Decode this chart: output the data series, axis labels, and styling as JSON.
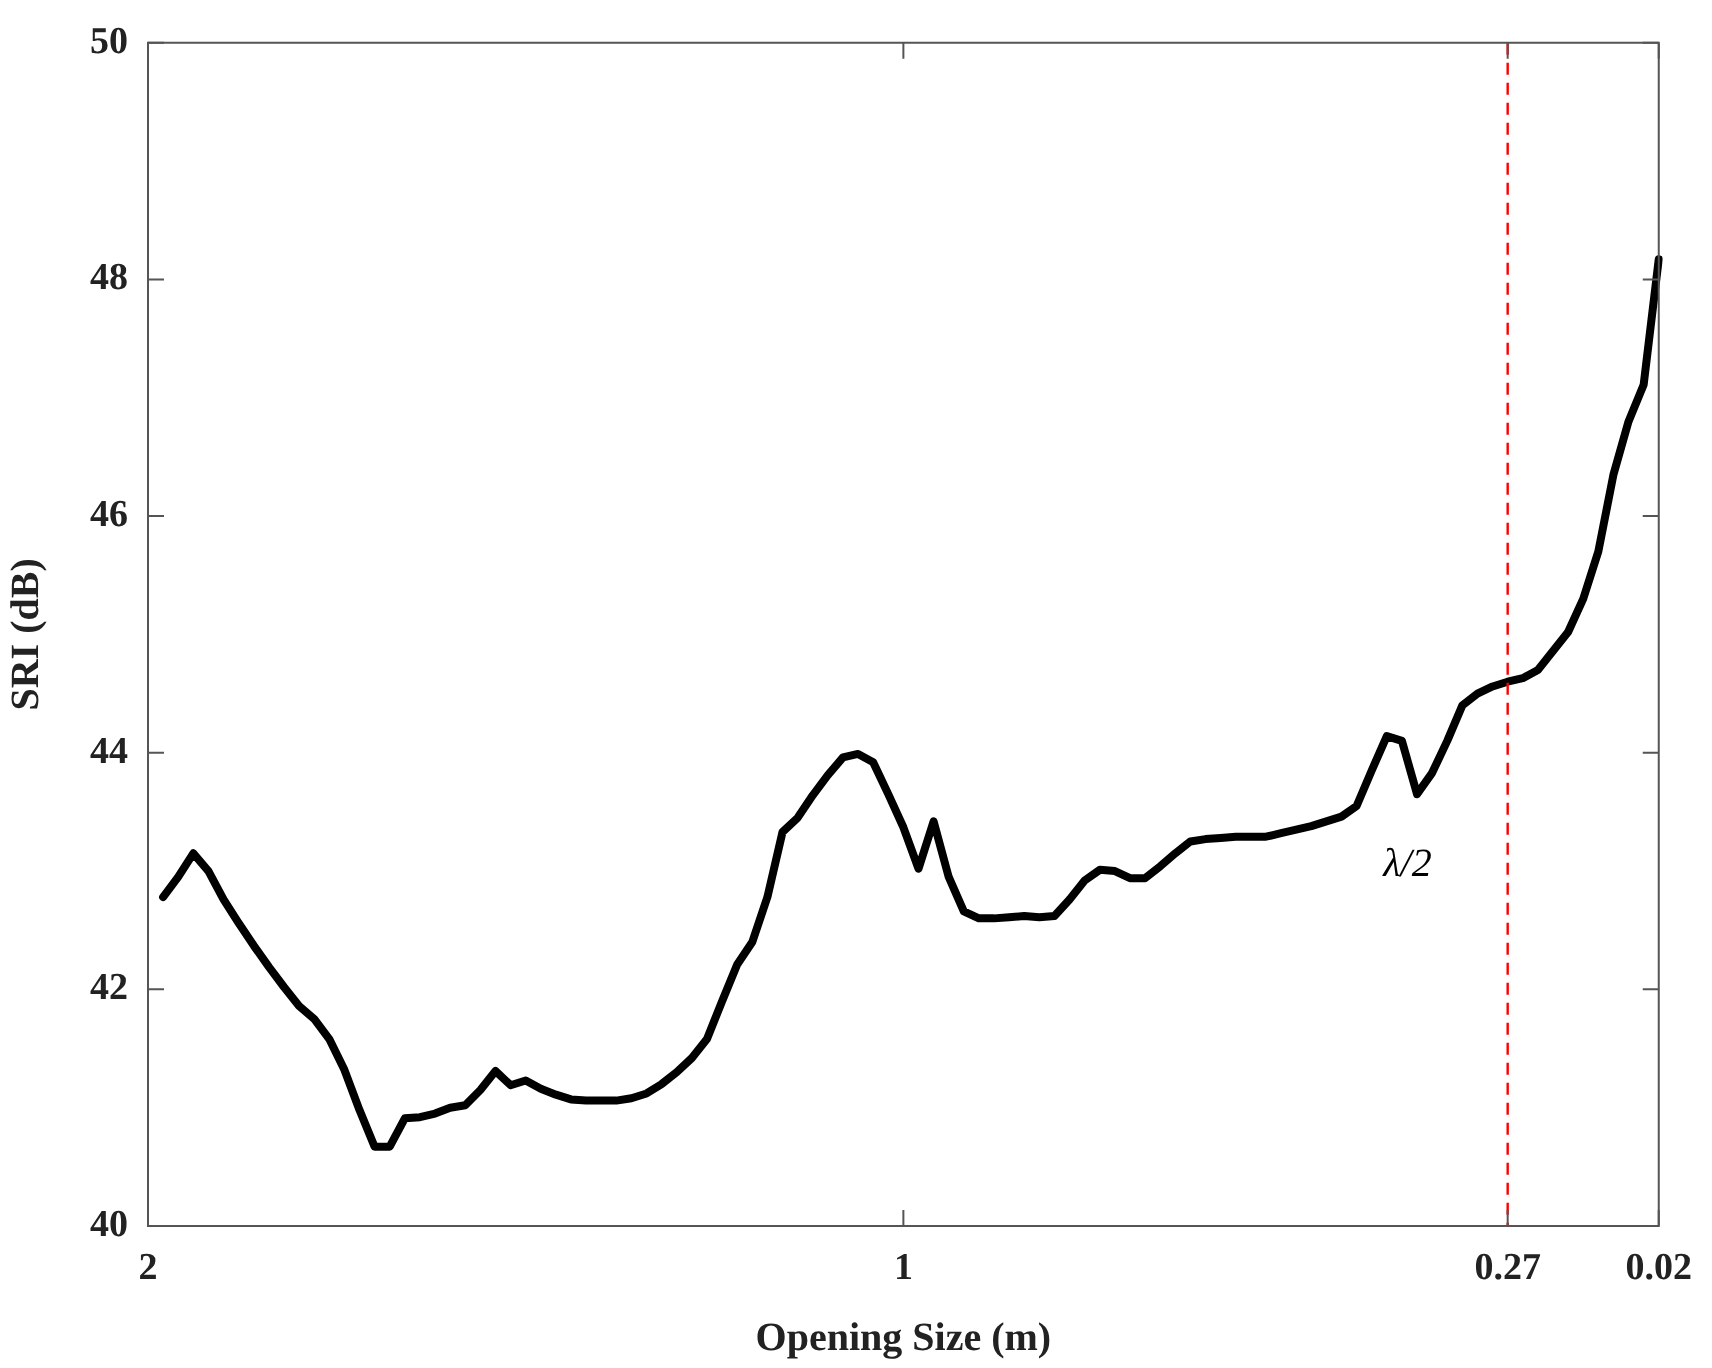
{
  "chart_data": {
    "type": "line",
    "xlabel": "Opening Size (m)",
    "ylabel": "SRI (dB)",
    "categories": [
      "2",
      null,
      null,
      null,
      null,
      null,
      null,
      null,
      null,
      null,
      null,
      null,
      null,
      null,
      null,
      null,
      null,
      null,
      null,
      null,
      null,
      null,
      null,
      null,
      null,
      null,
      null,
      null,
      null,
      null,
      null,
      null,
      null,
      null,
      null,
      null,
      null,
      null,
      null,
      null,
      null,
      null,
      null,
      null,
      null,
      null,
      null,
      null,
      null,
      null,
      "1",
      null,
      null,
      null,
      null,
      null,
      null,
      null,
      null,
      null,
      null,
      null,
      null,
      null,
      null,
      null,
      null,
      null,
      null,
      null,
      null,
      null,
      null,
      null,
      null,
      null,
      null,
      null,
      null,
      null,
      null,
      null,
      null,
      null,
      null,
      null,
      null,
      null,
      null,
      null,
      "0.27",
      null,
      null,
      null,
      null,
      null,
      null,
      null,
      null,
      null,
      "0.02"
    ],
    "series": [
      {
        "color": "#000000",
        "values": [
          null,
          42.78,
          42.95,
          43.15,
          43.0,
          42.76,
          42.56,
          42.37,
          42.19,
          42.02,
          41.86,
          41.75,
          41.58,
          41.32,
          40.98,
          40.67,
          40.67,
          40.91,
          40.92,
          40.95,
          41.0,
          41.02,
          41.15,
          41.31,
          41.19,
          41.23,
          41.16,
          41.11,
          41.07,
          41.06,
          41.06,
          41.06,
          41.08,
          41.12,
          41.2,
          41.3,
          41.42,
          41.58,
          41.9,
          42.21,
          42.4,
          42.78,
          43.33,
          43.45,
          43.64,
          43.81,
          43.96,
          43.99,
          43.92,
          43.65,
          43.37,
          43.02,
          43.42,
          42.95,
          42.66,
          42.6,
          42.6,
          42.61,
          42.62,
          42.61,
          42.62,
          42.76,
          42.92,
          43.01,
          43.0,
          42.94,
          42.94,
          43.04,
          43.15,
          43.25,
          43.27,
          43.28,
          43.29,
          43.29,
          43.29,
          43.32,
          43.35,
          43.38,
          43.42,
          43.46,
          43.55,
          43.85,
          44.14,
          44.1,
          43.65,
          43.83,
          44.1,
          44.4,
          44.5,
          44.56,
          44.6,
          44.63,
          44.7,
          44.86,
          45.02,
          45.3,
          45.7,
          46.35,
          46.8,
          47.11,
          48.17
        ]
      }
    ],
    "ylim": [
      40,
      50
    ],
    "yticks": [
      40,
      42,
      44,
      46,
      48,
      50
    ],
    "grid": false,
    "legend": false,
    "marker": "none",
    "line_style": "solid",
    "ref_lines": [
      {
        "axis": "x",
        "value": "0.27",
        "label": "λ/2",
        "color": "#ff0000",
        "line_style": "dashed"
      }
    ]
  }
}
